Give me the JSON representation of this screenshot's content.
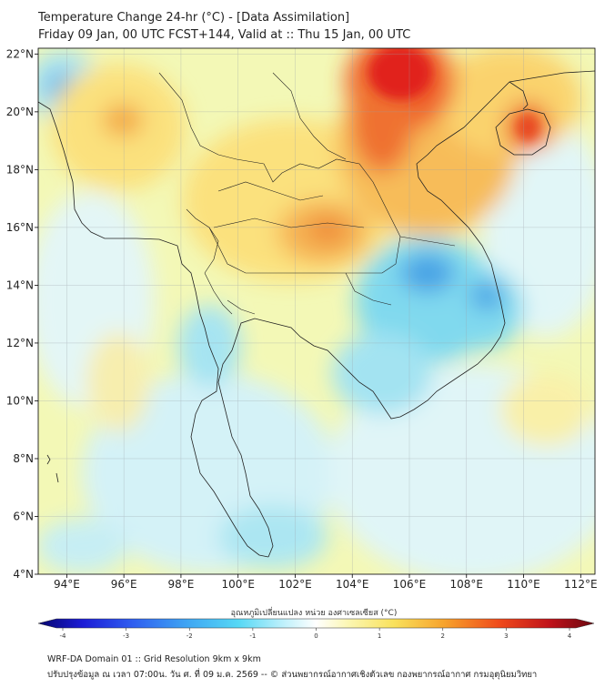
{
  "header": {
    "title_line1": "Temperature Change 24-hr (°C) - [Data Assimilation]",
    "title_line2": "Friday 09 Jan, 00 UTC FCST+144, Valid at :: Thu 15 Jan, 00 UTC"
  },
  "map": {
    "lon_range": [
      93,
      112.5
    ],
    "lat_range": [
      4,
      22.2
    ],
    "lon_ticks": [
      "94°E",
      "96°E",
      "98°E",
      "100°E",
      "102°E",
      "104°E",
      "106°E",
      "108°E",
      "110°E",
      "112°E"
    ],
    "lat_ticks": [
      "4°N",
      "6°N",
      "8°N",
      "10°N",
      "12°N",
      "14°N",
      "16°N",
      "18°N",
      "20°N",
      "22°N"
    ],
    "background_color": "#f3f8b6"
  },
  "colorbar": {
    "title": "อุณหภูมิเปลี่ยนแปลง หน่วย องศาเซลเซียส (°C)",
    "tick_labels": [
      "-4",
      "-3",
      "-2",
      "-1",
      "0",
      "1",
      "2",
      "3",
      "4"
    ],
    "colors": [
      "#06066e",
      "#1c1cd6",
      "#2f5ef0",
      "#3fa7f3",
      "#56d8f5",
      "#bdf0fb",
      "#ffffff",
      "#fbf6b0",
      "#f9e15c",
      "#f7a32c",
      "#ef4a1b",
      "#c0121a",
      "#6b0810"
    ]
  },
  "footer": {
    "line1": "WRF-DA Domain 01 :: Grid Resolution 9km x 9km",
    "line2": "ปรับปรุงข้อมูล ณ เวลา 07:00น. วัน ศ. ที่ 09 ม.ค. 2569 -- © ส่วนพยากรณ์อากาศเชิงตัวเลข กองพยากรณ์อากาศ กรมอุตุนิยมวิทยา"
  }
}
